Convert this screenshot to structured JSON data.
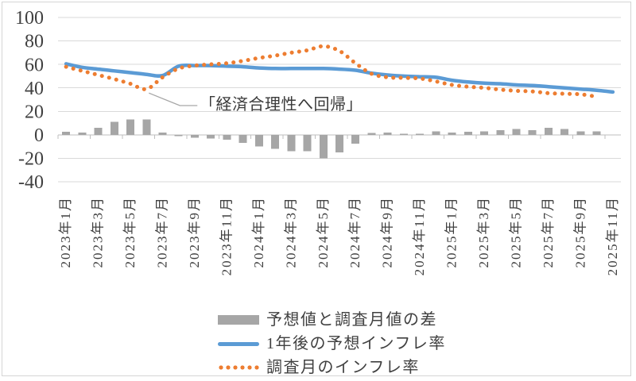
{
  "figure": {
    "background": "#ffffff",
    "border_color": "#d5d5d5",
    "grid_color": "#d9d9d9",
    "axis_color": "#bfbfbf",
    "label_color": "#404040"
  },
  "chart_data": {
    "type": "combo",
    "title": "",
    "xlabel": "",
    "ylabel": "",
    "ylim": [
      -40,
      100
    ],
    "y_ticks": [
      100,
      80,
      60,
      40,
      20,
      0,
      -20,
      -40
    ],
    "grid": true,
    "legend_position": "bottom",
    "x_tick_label_step": 2,
    "categories": [
      "2023年1月",
      "2023年2月",
      "2023年3月",
      "2023年4月",
      "2023年5月",
      "2023年6月",
      "2023年7月",
      "2023年8月",
      "2023年9月",
      "2023年10月",
      "2023年11月",
      "2023年12月",
      "2024年1月",
      "2024年2月",
      "2024年3月",
      "2024年4月",
      "2024年5月",
      "2024年6月",
      "2024年7月",
      "2024年8月",
      "2024年9月",
      "2024年10月",
      "2024年11月",
      "2024年12月",
      "2025年1月",
      "2025年2月",
      "2025年3月",
      "2025年4月",
      "2025年5月",
      "2025年6月",
      "2025年7月",
      "2025年8月",
      "2025年9月",
      "2025年10月",
      "2025年11月"
    ],
    "series": [
      {
        "name": "予想値と調査月値の差",
        "type": "bar",
        "color": "#A6A6A6",
        "values": [
          2.5,
          2,
          6,
          11,
          13,
          13,
          2,
          -1,
          -2.5,
          -3,
          -4,
          -7,
          -10,
          -12,
          -14,
          -14,
          -20,
          -15,
          -7.5,
          1.5,
          2,
          1,
          1,
          3,
          2,
          2.5,
          3,
          4,
          5,
          4,
          6,
          5,
          3,
          3,
          null
        ]
      },
      {
        "name": "1年後の予想インフレ率",
        "type": "line",
        "color": "#5B9BD5",
        "values": [
          60.5,
          57.5,
          56,
          54.5,
          53,
          51.5,
          50.5,
          58.5,
          59,
          59,
          58.5,
          58,
          57,
          56.5,
          56.5,
          56.5,
          56.5,
          56,
          55,
          52.5,
          51,
          50,
          49.5,
          49,
          46.5,
          45,
          44,
          43.5,
          42.5,
          42,
          41,
          40,
          39,
          38,
          36.5
        ]
      },
      {
        "name": "調査月のインフレ率",
        "type": "dotted_line",
        "color": "#ED7D31",
        "values": [
          58,
          54.5,
          51,
          47.5,
          43.5,
          39,
          49,
          56.5,
          59,
          60,
          61,
          63,
          65.5,
          67.5,
          70,
          72,
          75.5,
          71.5,
          61,
          52,
          49,
          48.5,
          48,
          45.5,
          42.5,
          41,
          40,
          38.5,
          37.5,
          37,
          35.5,
          35,
          34.5,
          32.5,
          null
        ]
      }
    ],
    "annotation": {
      "text": "「経済合理性へ回帰」",
      "target_category": "2023年6月",
      "target_value": 39
    }
  }
}
